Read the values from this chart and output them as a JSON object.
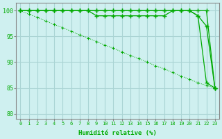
{
  "xlabel": "Humidité relative (%)",
  "background_color": "#cff0f0",
  "grid_color": "#aad4d4",
  "line_color": "#00aa00",
  "hours": [
    0,
    1,
    2,
    3,
    4,
    5,
    6,
    7,
    8,
    9,
    10,
    11,
    12,
    13,
    14,
    15,
    16,
    17,
    18,
    19,
    20,
    21,
    22,
    23
  ],
  "line1": [
    100,
    100,
    100,
    100,
    100,
    100,
    100,
    100,
    100,
    100,
    100,
    100,
    100,
    100,
    100,
    100,
    100,
    100,
    100,
    100,
    100,
    99,
    97,
    85
  ],
  "line2": [
    100,
    100,
    100,
    100,
    100,
    100,
    100,
    100,
    100,
    100,
    100,
    100,
    100,
    100,
    100,
    100,
    100,
    100,
    100,
    100,
    100,
    100,
    100,
    85
  ],
  "line3": [
    100,
    100,
    100,
    100,
    100,
    100,
    100,
    100,
    100,
    99,
    99,
    99,
    99,
    99,
    99,
    99,
    99,
    99,
    100,
    100,
    100,
    99,
    86,
    85
  ],
  "line4_diagonal": [
    100,
    99.3,
    98.7,
    98.0,
    97.3,
    96.7,
    96.0,
    95.3,
    94.7,
    94.0,
    93.3,
    92.7,
    92.0,
    91.3,
    90.7,
    90.0,
    89.3,
    88.7,
    88.0,
    87.3,
    86.7,
    86.0,
    85.5,
    85
  ],
  "ylim_min": 79,
  "ylim_max": 101.5,
  "yticks": [
    80,
    85,
    90,
    95,
    100
  ],
  "xticks": [
    0,
    1,
    2,
    3,
    4,
    5,
    6,
    7,
    8,
    9,
    10,
    11,
    12,
    13,
    14,
    15,
    16,
    17,
    18,
    19,
    20,
    21,
    22,
    23
  ],
  "marker_size": 3,
  "linewidth": 0.9
}
